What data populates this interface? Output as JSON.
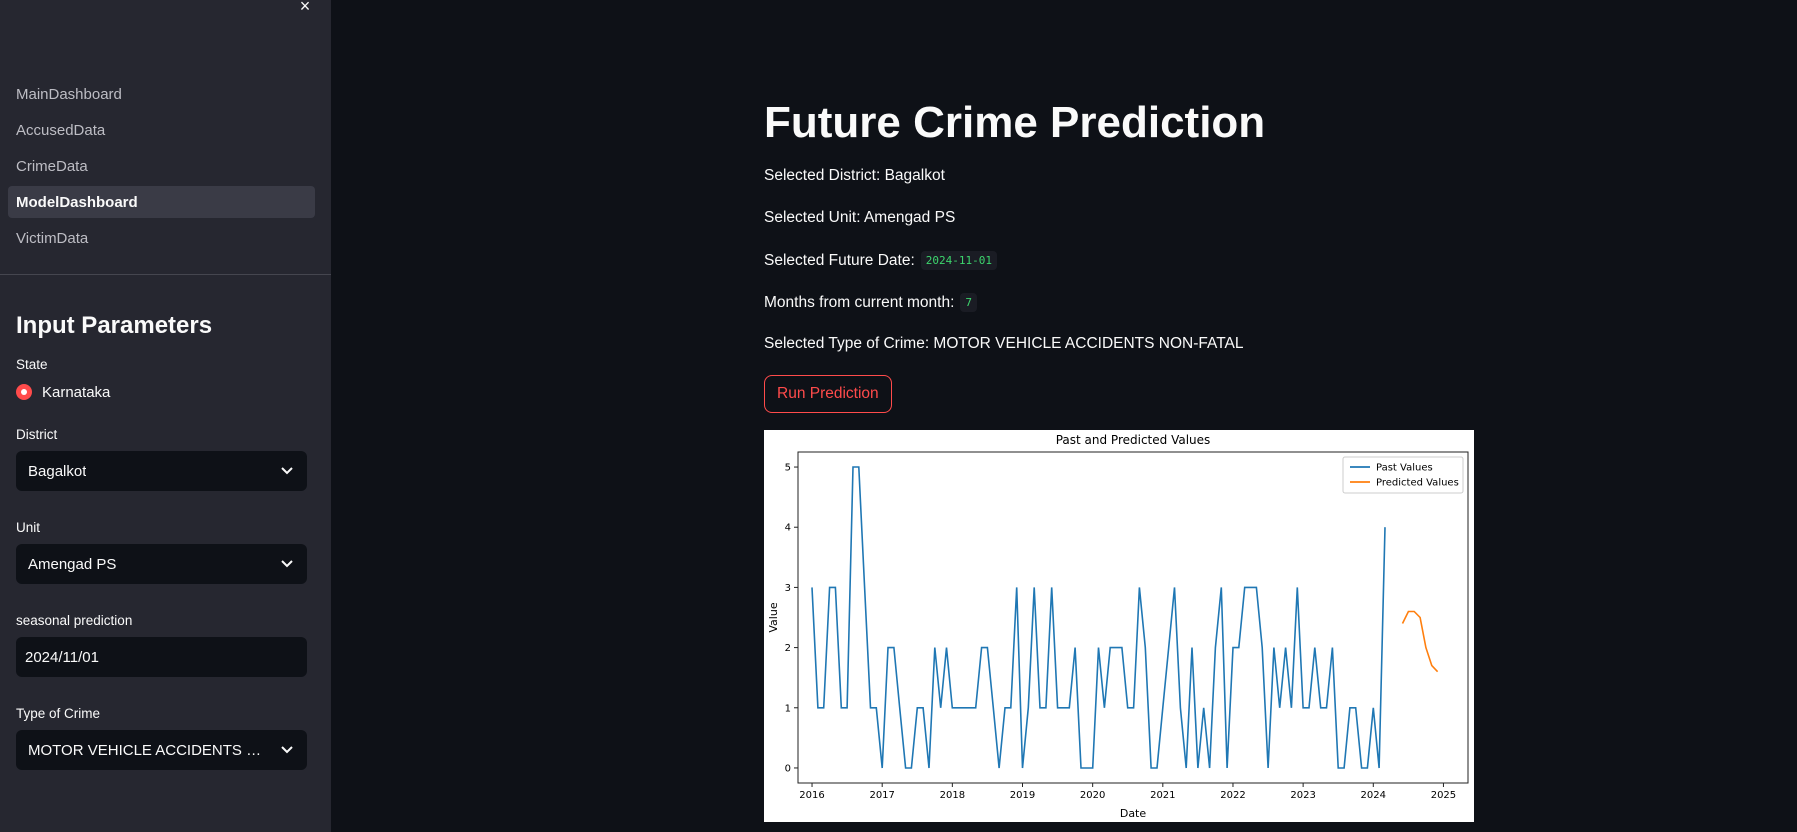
{
  "sidebar": {
    "close_label": "×",
    "nav": [
      {
        "label": "MainDashboard",
        "active": false
      },
      {
        "label": "AccusedData",
        "active": false
      },
      {
        "label": "CrimeData",
        "active": false
      },
      {
        "label": "ModelDashboard",
        "active": true
      },
      {
        "label": "VictimData",
        "active": false
      }
    ],
    "params_title": "Input Parameters",
    "state": {
      "label": "State",
      "option": "Karnataka"
    },
    "district": {
      "label": "District",
      "value": "Bagalkot"
    },
    "unit": {
      "label": "Unit",
      "value": "Amengad PS"
    },
    "seasonal": {
      "label": "seasonal prediction",
      "value": "2024/11/01"
    },
    "crime_type": {
      "label": "Type of Crime",
      "value": "MOTOR VEHICLE ACCIDENTS NON-FATAL"
    }
  },
  "main": {
    "title": "Future Crime Prediction",
    "district_line": "Selected District: Bagalkot",
    "unit_line": "Selected Unit: Amengad PS",
    "future_date_label": "Selected Future Date:",
    "future_date_value": "2024-11-01",
    "months_label": "Months from current month:",
    "months_value": "7",
    "crime_line": "Selected Type of Crime: MOTOR VEHICLE ACCIDENTS NON-FATAL",
    "run_button": "Run Prediction"
  },
  "colors": {
    "accent": "#ff4b4b",
    "code": "#3dd56d",
    "past": "#1f77b4",
    "predicted": "#ff7f0e"
  },
  "chart_data": {
    "type": "line",
    "title": "Past and Predicted Values",
    "xlabel": "Date",
    "ylabel": "Value",
    "xlim": [
      2015.8,
      2025.35
    ],
    "ylim": [
      -0.25,
      5.25
    ],
    "xticks": [
      "2016",
      "2017",
      "2018",
      "2019",
      "2020",
      "2021",
      "2022",
      "2023",
      "2024",
      "2025"
    ],
    "yticks": [
      "0",
      "1",
      "2",
      "3",
      "4",
      "5"
    ],
    "legend_position": "top-right",
    "series": [
      {
        "name": "Past Values",
        "start_year": 2016,
        "start_month": 1,
        "values": [
          3,
          1,
          1,
          3,
          3,
          1,
          1,
          5,
          5,
          3,
          1,
          1,
          0,
          2,
          2,
          1,
          0,
          0,
          1,
          1,
          0,
          2,
          1,
          2,
          1,
          1,
          1,
          1,
          1,
          2,
          2,
          1,
          0,
          1,
          1,
          3,
          0,
          1,
          3,
          1,
          1,
          3,
          1,
          1,
          1,
          2,
          0,
          0,
          0,
          2,
          1,
          2,
          2,
          2,
          1,
          1,
          3,
          2,
          0,
          0,
          1,
          2,
          3,
          1,
          0,
          2,
          0,
          1,
          0,
          2,
          3,
          0,
          2,
          2,
          3,
          3,
          3,
          2,
          0,
          2,
          1,
          2,
          1,
          3,
          1,
          1,
          2,
          1,
          1,
          2,
          0,
          0,
          1,
          1,
          0,
          0,
          1,
          0,
          4
        ]
      },
      {
        "name": "Predicted Values",
        "x": [
          "2024-06",
          "2024-07",
          "2024-08",
          "2024-09",
          "2024-10",
          "2024-11",
          "2024-12"
        ],
        "values": [
          2.4,
          2.6,
          2.6,
          2.5,
          2.0,
          1.7,
          1.6
        ]
      }
    ]
  }
}
